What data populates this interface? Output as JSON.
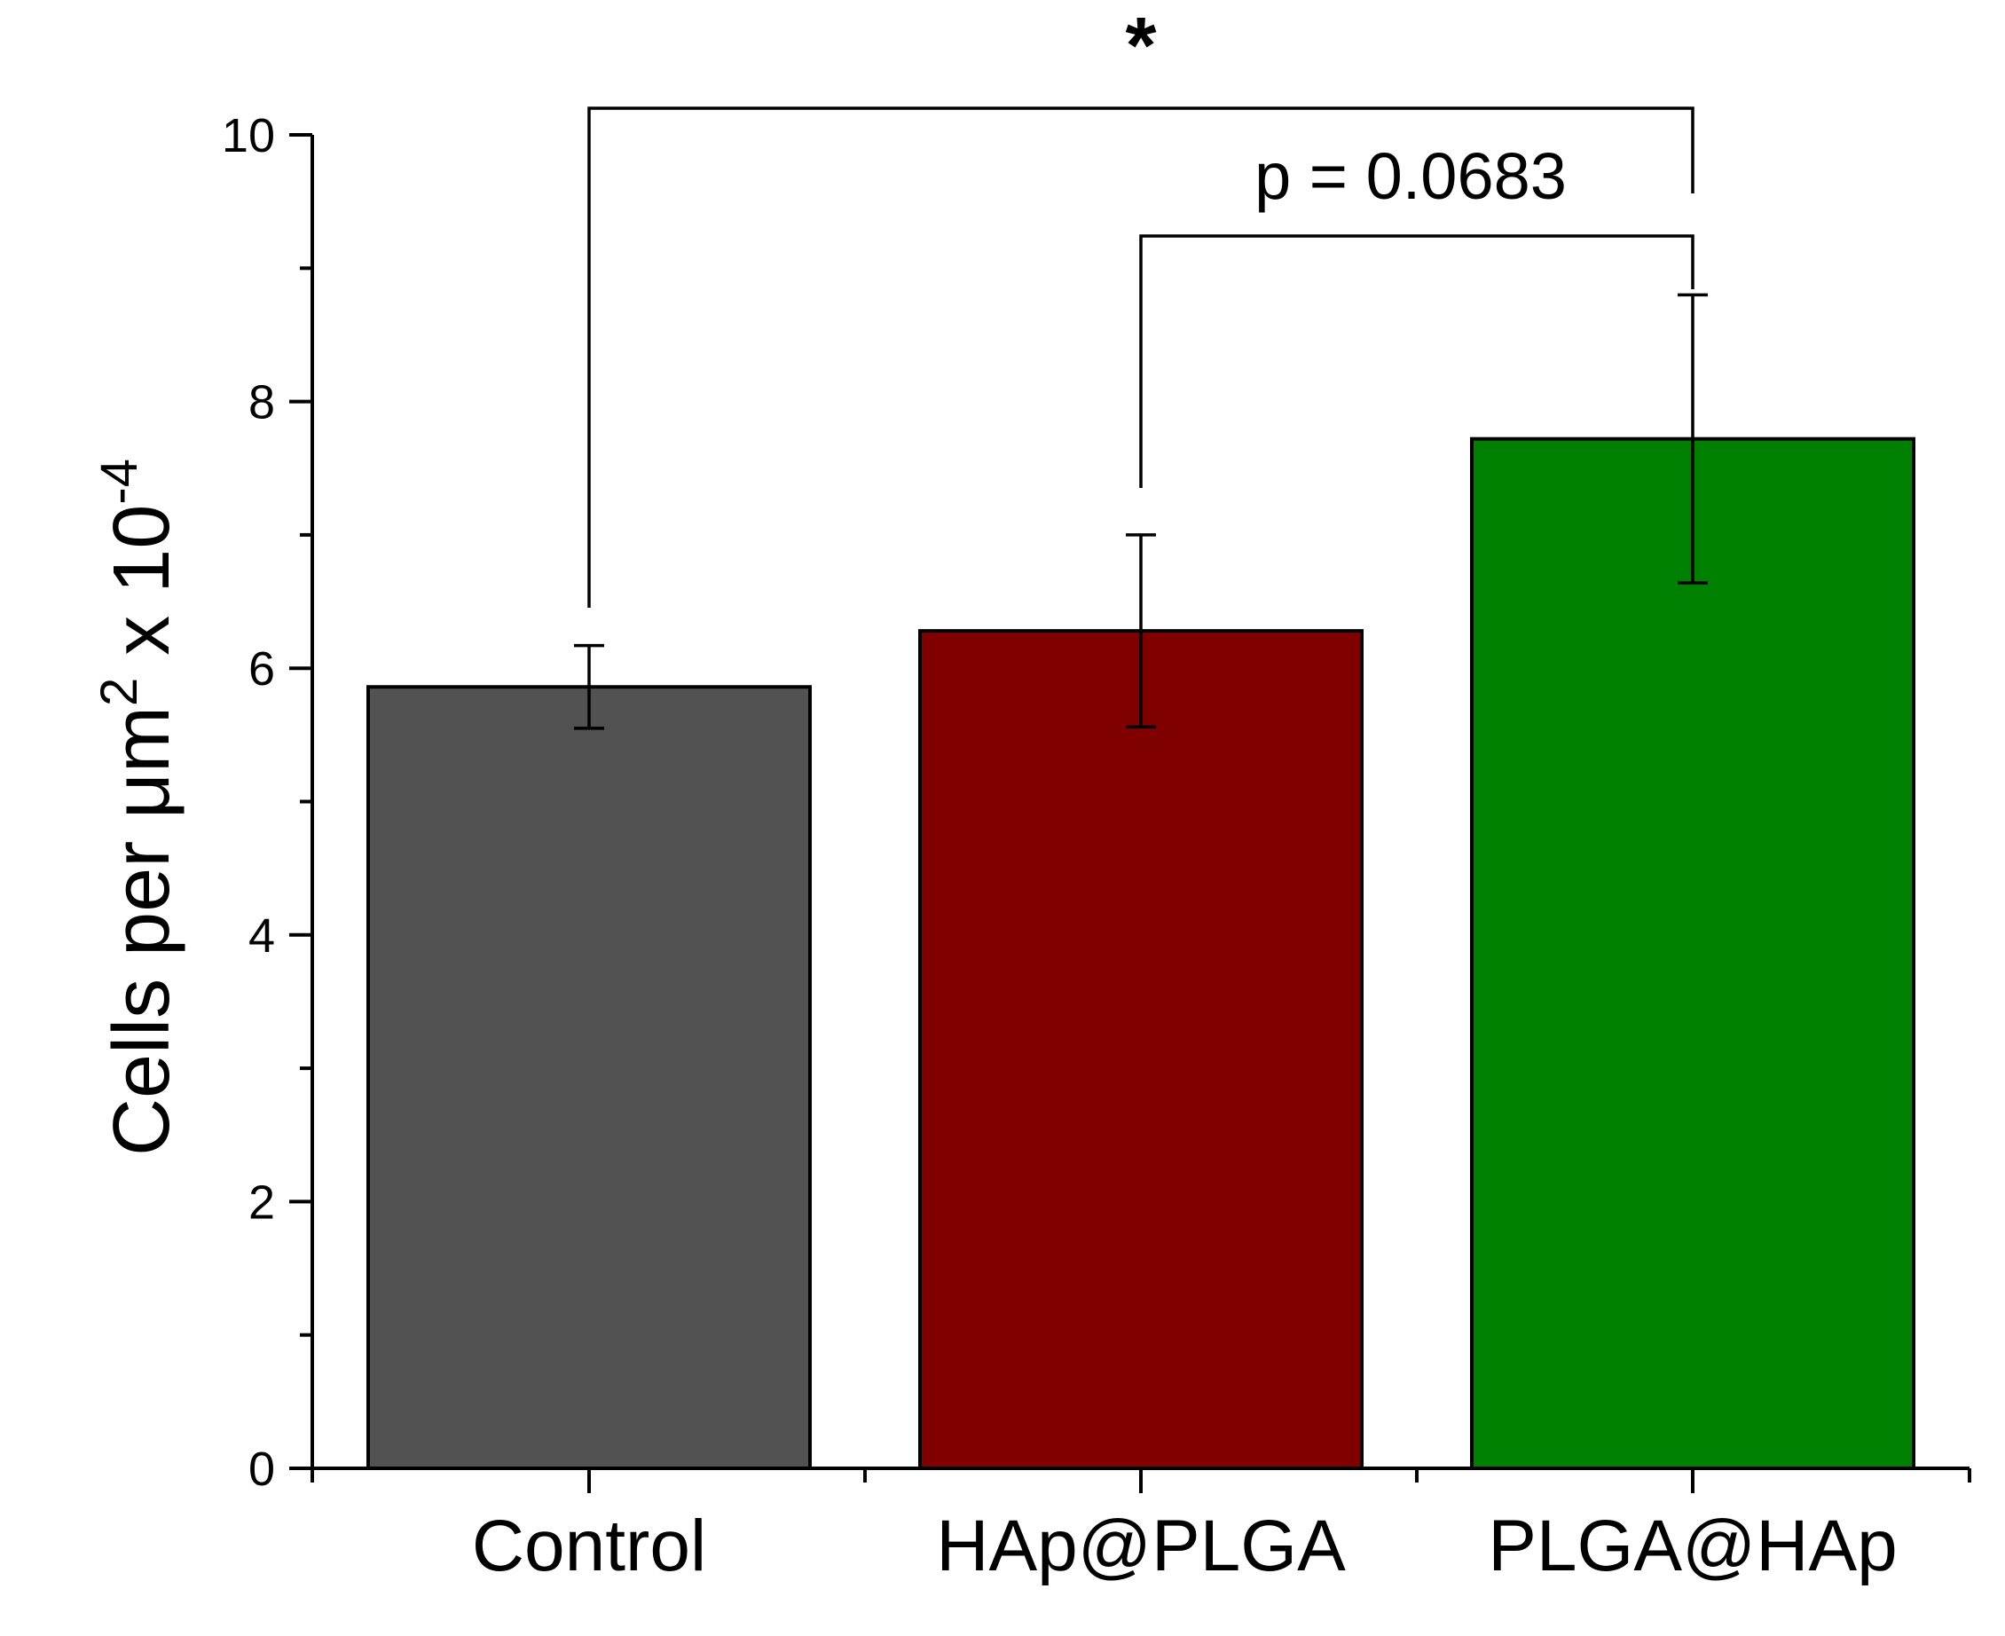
{
  "chart_data": {
    "type": "bar",
    "categories": [
      "Control",
      "HAp@PLGA",
      "PLGA@HAp"
    ],
    "values": [
      5.86,
      6.28,
      7.72
    ],
    "errors": [
      0.31,
      0.72,
      1.08
    ],
    "colors": [
      "#525252",
      "#800000",
      "#008000"
    ],
    "ylabel_main": "Cells per μm",
    "ylabel_sup": "2",
    "ylabel_mid": " x 10",
    "ylabel_exp": "-4",
    "ylim": [
      0,
      10
    ],
    "yticks": [
      "0",
      "2",
      "4",
      "6",
      "8",
      "10"
    ],
    "yminor_step": 1,
    "grid": false,
    "brackets": [
      {
        "from": 0,
        "to": 2,
        "label": "*"
      },
      {
        "from": 1,
        "to": 2,
        "label": "p = 0.0683"
      }
    ]
  }
}
